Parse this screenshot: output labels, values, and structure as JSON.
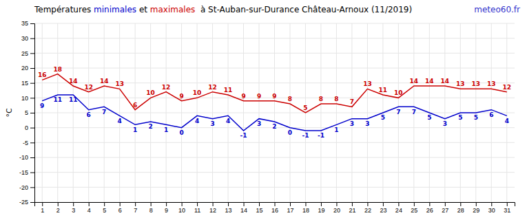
{
  "chart_data": {
    "type": "line",
    "title": [
      {
        "text": "Températures ",
        "color": "#000000"
      },
      {
        "text": "minimales",
        "color": "#0000cc"
      },
      {
        "text": " et ",
        "color": "#000000"
      },
      {
        "text": "maximales",
        "color": "#cc0000"
      },
      {
        "text": "  à St-Auban-sur-Durance Château-Arnoux (11/2019)",
        "color": "#000000"
      }
    ],
    "annotations": [
      {
        "text": "meteo60.fr",
        "color": "#3333cc"
      }
    ],
    "y_label": "°C",
    "x": [
      1,
      2,
      3,
      4,
      5,
      6,
      7,
      8,
      9,
      10,
      11,
      12,
      13,
      14,
      15,
      16,
      17,
      18,
      19,
      20,
      21,
      22,
      23,
      24,
      25,
      26,
      27,
      28,
      29,
      30,
      31
    ],
    "series": [
      {
        "color": "#0000cc",
        "values": [
          9,
          11,
          11,
          6,
          7,
          4,
          1,
          2,
          1,
          0,
          4,
          3,
          4,
          -1,
          3,
          2,
          0,
          -1,
          -1,
          1,
          3,
          3,
          5,
          7,
          7,
          5,
          3,
          5,
          5,
          6,
          4
        ]
      },
      {
        "color": "#cc0000",
        "values": [
          16,
          18,
          14,
          12,
          14,
          13,
          6,
          10,
          12,
          9,
          10,
          12,
          11,
          9,
          9,
          9,
          8,
          5,
          8,
          8,
          7,
          13,
          11,
          10,
          14,
          14,
          14,
          13,
          13,
          13,
          12
        ]
      }
    ],
    "xlim": [
      0.5,
      31.5
    ],
    "xticks": [
      1,
      2,
      3,
      4,
      5,
      6,
      7,
      8,
      9,
      10,
      11,
      12,
      13,
      14,
      15,
      16,
      17,
      18,
      19,
      20,
      21,
      22,
      23,
      24,
      25,
      26,
      27,
      28,
      29,
      30,
      31
    ],
    "ylim": [
      -25,
      35
    ],
    "yticks": [
      -25,
      -20,
      -15,
      -10,
      -5,
      0,
      5,
      10,
      15,
      20,
      25,
      30,
      35
    ],
    "grid": true,
    "data_labels": true
  }
}
